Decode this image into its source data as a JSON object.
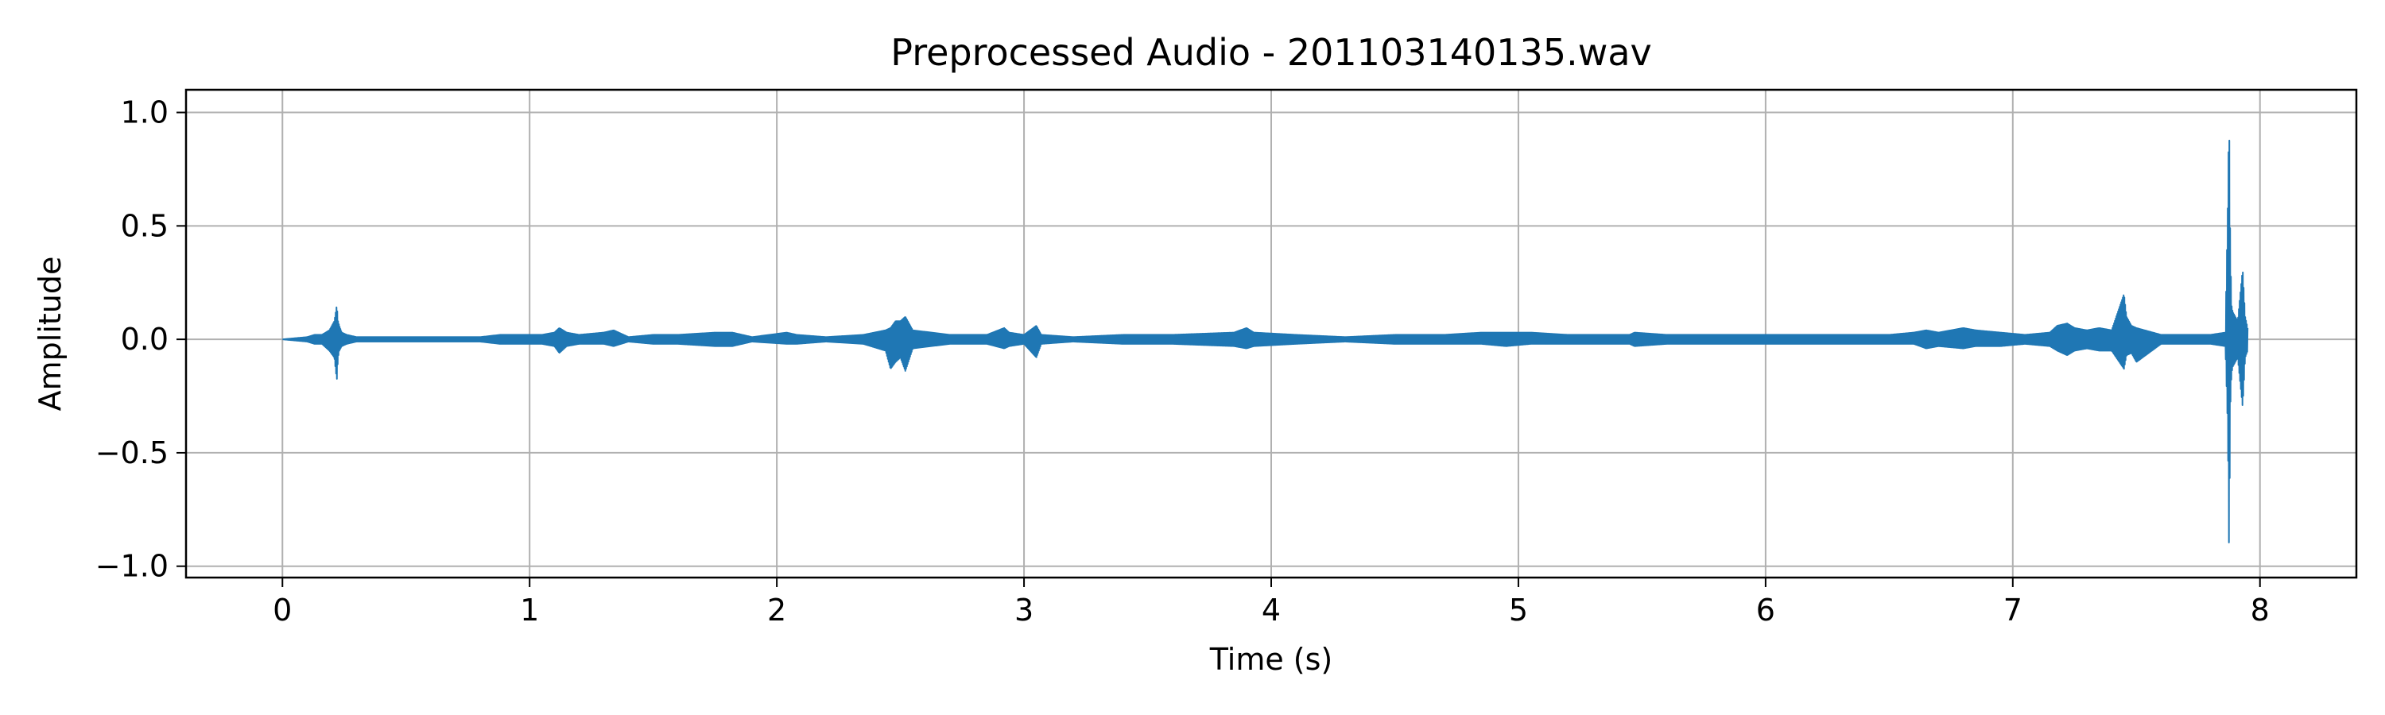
{
  "chart_data": {
    "type": "line",
    "title": "Preprocessed Audio - 201103140135.wav",
    "xlabel": "Time (s)",
    "ylabel": "Amplitude",
    "xlim": [
      -0.39,
      8.39
    ],
    "ylim": [
      -1.05,
      1.1
    ],
    "xticks": [
      0,
      1,
      2,
      3,
      4,
      5,
      6,
      7,
      8
    ],
    "xtick_labels": [
      "0",
      "1",
      "2",
      "3",
      "4",
      "5",
      "6",
      "7",
      "8"
    ],
    "yticks": [
      1.0,
      0.5,
      0.0,
      -0.5,
      -1.0
    ],
    "ytick_labels": [
      "1.0",
      "0.5",
      "0.0",
      "−0.5",
      "−1.0"
    ],
    "grid": true,
    "line_color": "#1f77b4",
    "series": [
      {
        "x": [
          0.0,
          0.1,
          0.13,
          0.16,
          0.19,
          0.21,
          0.22,
          0.225,
          0.23,
          0.24,
          0.26,
          0.3,
          0.35,
          0.4,
          0.5,
          0.6,
          0.7,
          0.8,
          0.88,
          0.95,
          1.05,
          1.1,
          1.12,
          1.15,
          1.2,
          1.3,
          1.34,
          1.4,
          1.5,
          1.6,
          1.75,
          1.78,
          1.82,
          1.9,
          2.04,
          2.08,
          2.2,
          2.35,
          2.44,
          2.46,
          2.48,
          2.5,
          2.52,
          2.55,
          2.7,
          2.85,
          2.92,
          2.94,
          3.0,
          3.05,
          3.07,
          3.2,
          3.4,
          3.6,
          3.85,
          3.9,
          3.93,
          4.1,
          4.3,
          4.5,
          4.7,
          4.85,
          4.95,
          5.05,
          5.2,
          5.3,
          5.45,
          5.47,
          5.6,
          5.7,
          5.85,
          5.95,
          6.1,
          6.3,
          6.5,
          6.6,
          6.65,
          6.7,
          6.8,
          6.85,
          6.95,
          7.05,
          7.15,
          7.18,
          7.22,
          7.25,
          7.3,
          7.35,
          7.4,
          7.45,
          7.46,
          7.48,
          7.5,
          7.6,
          7.7,
          7.8,
          7.86,
          7.87,
          7.875,
          7.88,
          7.885,
          7.89,
          7.9,
          7.91,
          7.93,
          7.94,
          7.95
        ],
        "y_max": [
          0.0,
          0.01,
          0.02,
          0.02,
          0.04,
          0.08,
          0.15,
          0.08,
          0.06,
          0.03,
          0.02,
          0.01,
          0.01,
          0.01,
          0.01,
          0.01,
          0.01,
          0.01,
          0.02,
          0.02,
          0.02,
          0.03,
          0.05,
          0.03,
          0.02,
          0.03,
          0.04,
          0.01,
          0.02,
          0.02,
          0.03,
          0.03,
          0.03,
          0.01,
          0.03,
          0.02,
          0.01,
          0.02,
          0.04,
          0.05,
          0.08,
          0.08,
          0.1,
          0.04,
          0.02,
          0.02,
          0.05,
          0.03,
          0.02,
          0.06,
          0.02,
          0.01,
          0.02,
          0.02,
          0.03,
          0.05,
          0.03,
          0.02,
          0.01,
          0.02,
          0.02,
          0.03,
          0.03,
          0.03,
          0.02,
          0.02,
          0.02,
          0.03,
          0.02,
          0.02,
          0.02,
          0.02,
          0.02,
          0.02,
          0.02,
          0.03,
          0.04,
          0.03,
          0.05,
          0.04,
          0.03,
          0.02,
          0.03,
          0.06,
          0.07,
          0.05,
          0.04,
          0.05,
          0.04,
          0.2,
          0.1,
          0.06,
          0.05,
          0.02,
          0.02,
          0.02,
          0.03,
          0.6,
          1.0,
          0.4,
          0.15,
          0.12,
          0.1,
          0.08,
          0.31,
          0.1,
          0.05
        ],
        "y_min": [
          0.0,
          -0.01,
          -0.02,
          -0.02,
          -0.05,
          -0.08,
          -0.18,
          -0.08,
          -0.05,
          -0.03,
          -0.02,
          -0.01,
          -0.01,
          -0.01,
          -0.01,
          -0.01,
          -0.01,
          -0.01,
          -0.02,
          -0.02,
          -0.02,
          -0.03,
          -0.06,
          -0.03,
          -0.02,
          -0.02,
          -0.03,
          -0.01,
          -0.02,
          -0.02,
          -0.03,
          -0.03,
          -0.03,
          -0.01,
          -0.02,
          -0.02,
          -0.01,
          -0.02,
          -0.05,
          -0.13,
          -0.1,
          -0.08,
          -0.14,
          -0.04,
          -0.02,
          -0.02,
          -0.04,
          -0.03,
          -0.02,
          -0.08,
          -0.02,
          -0.01,
          -0.02,
          -0.02,
          -0.03,
          -0.04,
          -0.03,
          -0.02,
          -0.01,
          -0.02,
          -0.02,
          -0.02,
          -0.03,
          -0.02,
          -0.02,
          -0.02,
          -0.02,
          -0.03,
          -0.02,
          -0.02,
          -0.02,
          -0.02,
          -0.02,
          -0.02,
          -0.02,
          -0.02,
          -0.04,
          -0.03,
          -0.04,
          -0.03,
          -0.03,
          -0.02,
          -0.03,
          -0.05,
          -0.07,
          -0.05,
          -0.04,
          -0.05,
          -0.05,
          -0.13,
          -0.07,
          -0.06,
          -0.1,
          -0.02,
          -0.02,
          -0.02,
          -0.03,
          -0.4,
          -0.96,
          -0.3,
          -0.15,
          -0.12,
          -0.1,
          -0.08,
          -0.3,
          -0.08,
          -0.05
        ]
      }
    ]
  }
}
